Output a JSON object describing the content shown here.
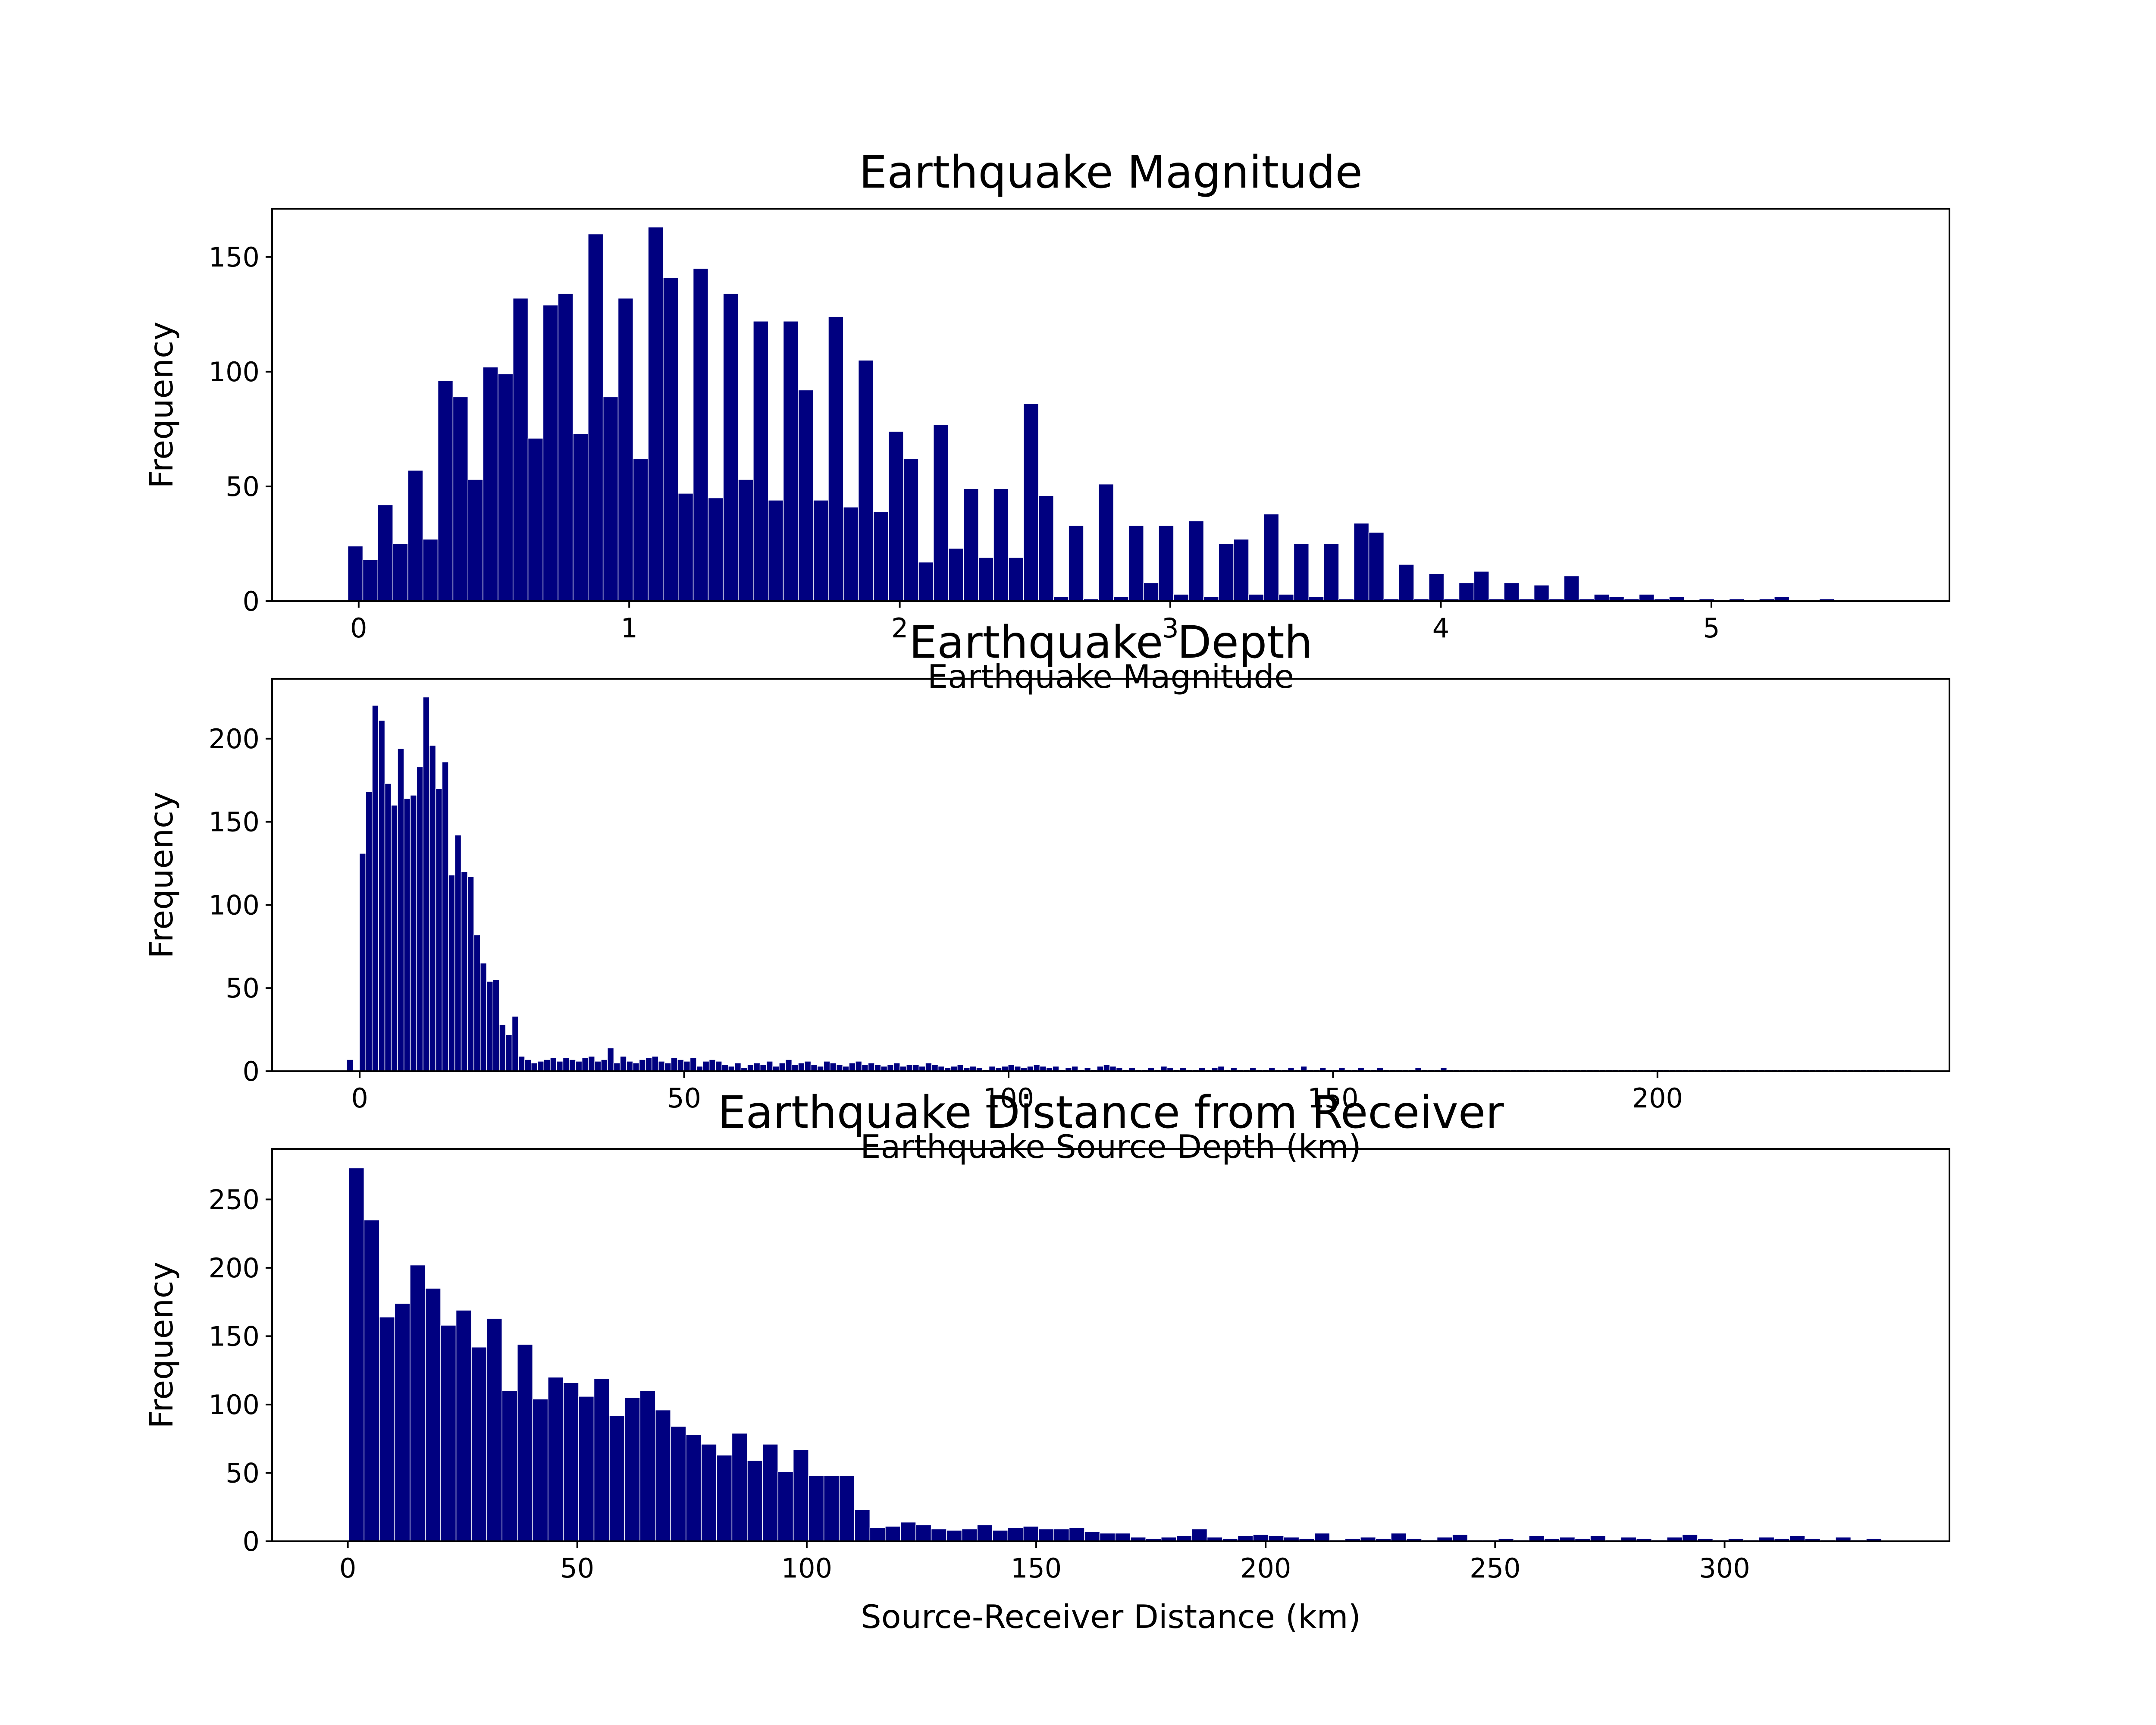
{
  "chart_data": [
    {
      "type": "bar",
      "title": "Earthquake Magnitude",
      "xlabel": "Earthquake Magnitude",
      "ylabel": "Frequency",
      "xlim": [
        -0.32,
        5.88
      ],
      "ylim": [
        0,
        171
      ],
      "xticks": [
        0,
        1,
        2,
        3,
        4,
        5
      ],
      "xtick_labels": [
        "0",
        "1",
        "2",
        "3",
        "4",
        "5"
      ],
      "yticks": [
        0,
        50,
        100,
        150
      ],
      "ytick_labels": [
        "0",
        "50",
        "100",
        "150"
      ],
      "bar_color": "#000080",
      "edge_color": "#ffffff",
      "bin_start": -0.04,
      "bin_width": 0.0555,
      "values": [
        24,
        18,
        42,
        25,
        57,
        27,
        96,
        89,
        53,
        102,
        99,
        132,
        71,
        129,
        134,
        73,
        160,
        89,
        132,
        62,
        163,
        141,
        47,
        145,
        45,
        134,
        53,
        122,
        44,
        122,
        92,
        44,
        124,
        41,
        105,
        39,
        74,
        62,
        17,
        77,
        23,
        49,
        19,
        49,
        19,
        86,
        46,
        2,
        33,
        1,
        51,
        2,
        33,
        8,
        33,
        3,
        35,
        2,
        25,
        27,
        3,
        38,
        3,
        25,
        2,
        25,
        1,
        34,
        30,
        1,
        16,
        1,
        12,
        1,
        8,
        13,
        1,
        8,
        1,
        7,
        1,
        11,
        1,
        3,
        2,
        1,
        3,
        1,
        2,
        0,
        1,
        0,
        1,
        0,
        1,
        2,
        0,
        0,
        1,
        0
      ]
    },
    {
      "type": "bar",
      "title": "Earthquake Depth",
      "xlabel": "Earthquake Source Depth (km)",
      "ylabel": "Frequency",
      "xlim": [
        -13.5,
        245
      ],
      "ylim": [
        0,
        236
      ],
      "xticks": [
        0,
        50,
        100,
        150,
        200
      ],
      "xtick_labels": [
        "0",
        "50",
        "100",
        "150",
        "200"
      ],
      "yticks": [
        0,
        50,
        100,
        150,
        200
      ],
      "ytick_labels": [
        "0",
        "50",
        "100",
        "150",
        "200"
      ],
      "bar_color": "#000080",
      "edge_color": "#ffffff",
      "bin_start": -2,
      "bin_width": 0.98,
      "values": [
        7,
        0,
        131,
        168,
        220,
        211,
        173,
        160,
        194,
        164,
        166,
        183,
        225,
        196,
        170,
        186,
        118,
        142,
        120,
        117,
        82,
        65,
        54,
        55,
        28,
        22,
        33,
        9,
        7,
        5,
        6,
        7,
        8,
        6,
        8,
        7,
        6,
        8,
        9,
        6,
        7,
        14,
        5,
        9,
        6,
        5,
        7,
        8,
        9,
        6,
        5,
        8,
        7,
        6,
        8,
        3,
        6,
        7,
        6,
        4,
        3,
        5,
        2,
        4,
        5,
        4,
        6,
        3,
        5,
        7,
        4,
        5,
        6,
        4,
        3,
        6,
        5,
        4,
        3,
        5,
        6,
        4,
        5,
        4,
        3,
        4,
        5,
        3,
        4,
        4,
        3,
        5,
        4,
        3,
        2,
        3,
        4,
        2,
        3,
        2,
        1,
        3,
        2,
        3,
        4,
        3,
        2,
        3,
        4,
        3,
        2,
        3,
        1,
        2,
        3,
        1,
        2,
        1,
        3,
        4,
        3,
        2,
        1,
        2,
        1,
        1,
        2,
        1,
        3,
        2,
        1,
        2,
        1,
        1,
        2,
        1,
        2,
        3,
        1,
        2,
        1,
        1,
        2,
        1,
        1,
        2,
        1,
        1,
        2,
        1,
        3,
        1,
        1,
        2,
        1,
        1,
        2,
        1,
        1,
        2,
        1,
        1,
        2,
        1,
        1,
        1,
        1,
        1,
        2,
        1,
        1,
        1,
        2,
        1,
        1,
        1,
        1,
        1,
        1,
        1,
        1,
        1,
        1,
        1,
        1,
        1,
        1,
        1,
        1,
        1,
        1,
        1,
        1,
        1,
        1,
        1,
        1,
        1,
        1,
        1,
        1,
        1,
        1,
        1,
        1,
        1,
        1,
        1,
        1,
        1,
        1,
        1,
        1,
        1,
        1,
        1,
        1,
        1,
        1,
        1,
        1,
        1,
        1,
        1,
        1,
        1,
        1,
        1,
        1,
        1,
        1,
        1,
        1,
        1,
        1,
        1,
        1,
        1,
        1,
        1,
        1,
        1,
        1,
        1,
        1,
        1
      ]
    },
    {
      "type": "bar",
      "title": "Earthquake Distance from Receiver",
      "xlabel": "Source-Receiver Distance (km)",
      "ylabel": "Frequency",
      "xlim": [
        -16.5,
        349
      ],
      "ylim": [
        0,
        287
      ],
      "xticks": [
        0,
        50,
        100,
        150,
        200,
        250,
        300
      ],
      "xtick_labels": [
        "0",
        "50",
        "100",
        "150",
        "200",
        "250",
        "300"
      ],
      "yticks": [
        0,
        50,
        100,
        150,
        200,
        250
      ],
      "ytick_labels": [
        "0",
        "50",
        "100",
        "150",
        "200",
        "250"
      ],
      "bar_color": "#000080",
      "edge_color": "#ffffff",
      "bin_start": 0.2,
      "bin_width": 3.34,
      "values": [
        273,
        235,
        164,
        174,
        202,
        185,
        158,
        169,
        142,
        163,
        110,
        144,
        104,
        120,
        116,
        106,
        119,
        92,
        105,
        110,
        96,
        84,
        78,
        71,
        63,
        79,
        59,
        71,
        51,
        67,
        48,
        48,
        48,
        23,
        10,
        11,
        14,
        12,
        9,
        8,
        9,
        12,
        8,
        10,
        11,
        9,
        9,
        10,
        7,
        6,
        6,
        3,
        2,
        3,
        4,
        9,
        3,
        2,
        4,
        5,
        4,
        3,
        2,
        6,
        1,
        2,
        3,
        2,
        6,
        2,
        1,
        3,
        5,
        1,
        1,
        2,
        1,
        4,
        2,
        3,
        2,
        4,
        1,
        3,
        2,
        1,
        3,
        5,
        2,
        1,
        2,
        1,
        3,
        2,
        4,
        2,
        1,
        3,
        1,
        2
      ]
    }
  ]
}
